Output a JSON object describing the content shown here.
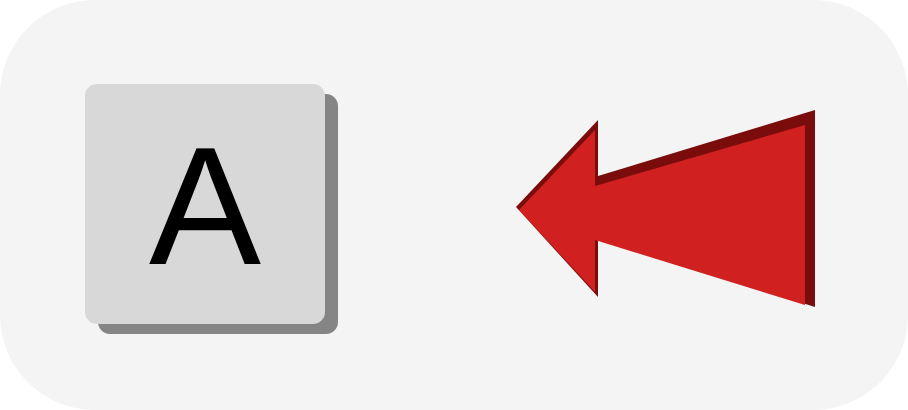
{
  "key": {
    "label": "A",
    "icon": "keyboard-key"
  },
  "arrow": {
    "icon": "arrow-left-icon",
    "direction": "left",
    "fill_color": "#d02020",
    "shadow_color": "#7a0c0c"
  },
  "colors": {
    "panel_background": "#f4f4f4",
    "key_face": "#d8d8d8",
    "key_shadow": "#858585",
    "key_text": "#000000"
  }
}
